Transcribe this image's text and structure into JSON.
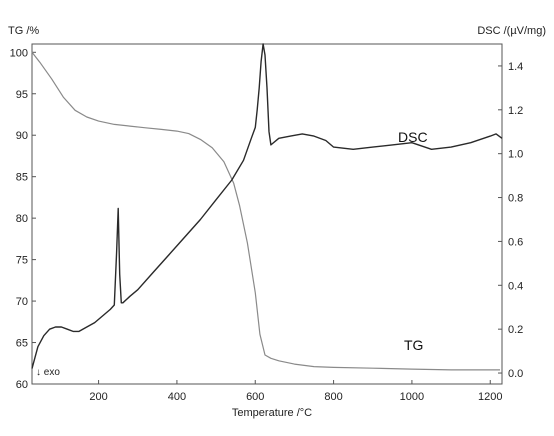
{
  "chart_data": {
    "type": "line",
    "xlabel": "Temperature /°C",
    "ylabel_left": "TG /%",
    "ylabel_right": "DSC /(µV/mg)",
    "xlim": [
      30,
      1230
    ],
    "ylim_left": [
      60,
      101
    ],
    "ylim_right": [
      -0.05,
      1.5
    ],
    "xticks": [
      200,
      400,
      600,
      800,
      1000,
      1200
    ],
    "yticks_left": [
      60,
      65,
      70,
      75,
      80,
      85,
      90,
      95,
      100
    ],
    "yticks_right": [
      0.0,
      0.2,
      0.4,
      0.6,
      0.8,
      1.0,
      1.2,
      1.4
    ],
    "grid": false,
    "annotation_exo": "↓ exo",
    "series": [
      {
        "name": "TG",
        "axis": "left",
        "color": "#8a8a8a",
        "x": [
          30,
          50,
          80,
          110,
          140,
          170,
          200,
          240,
          280,
          320,
          360,
          400,
          430,
          460,
          490,
          520,
          545,
          560,
          580,
          600,
          612,
          625,
          640,
          660,
          700,
          750,
          800,
          900,
          1000,
          1100,
          1200,
          1225
        ],
        "y": [
          100,
          98.8,
          96.8,
          94.6,
          93,
          92.2,
          91.7,
          91.3,
          91.1,
          90.9,
          90.7,
          90.5,
          90.2,
          89.5,
          88.5,
          86.8,
          84.2,
          81.5,
          77,
          71,
          66,
          63.5,
          63.1,
          62.8,
          62.4,
          62.1,
          62,
          61.9,
          61.8,
          61.7,
          61.7,
          61.7
        ]
      },
      {
        "name": "DSC",
        "axis": "right",
        "color": "#2a2a2a",
        "x": [
          30,
          45,
          60,
          75,
          90,
          105,
          120,
          135,
          150,
          170,
          190,
          210,
          230,
          240,
          246,
          250,
          254,
          258,
          262,
          280,
          300,
          340,
          380,
          420,
          460,
          500,
          540,
          570,
          590,
          600,
          605,
          610,
          615,
          620,
          625,
          630,
          635,
          640,
          660,
          690,
          720,
          750,
          780,
          800,
          850,
          900,
          950,
          1000,
          1050,
          1100,
          1150,
          1200,
          1215,
          1230
        ],
        "y": [
          0.02,
          0.12,
          0.17,
          0.2,
          0.21,
          0.21,
          0.2,
          0.19,
          0.19,
          0.21,
          0.23,
          0.26,
          0.29,
          0.31,
          0.55,
          0.75,
          0.45,
          0.32,
          0.32,
          0.35,
          0.38,
          0.46,
          0.54,
          0.62,
          0.7,
          0.79,
          0.88,
          0.97,
          1.07,
          1.12,
          1.2,
          1.3,
          1.42,
          1.5,
          1.45,
          1.3,
          1.1,
          1.04,
          1.07,
          1.08,
          1.09,
          1.08,
          1.06,
          1.03,
          1.02,
          1.03,
          1.04,
          1.05,
          1.02,
          1.03,
          1.05,
          1.08,
          1.09,
          1.07
        ]
      }
    ]
  }
}
